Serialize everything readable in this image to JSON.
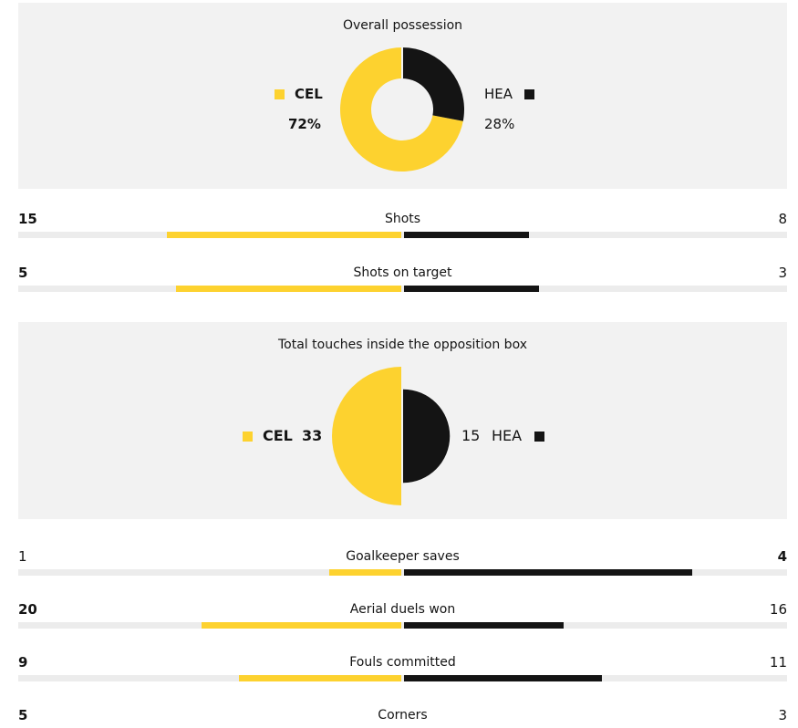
{
  "colors": {
    "home": "#fdd22f",
    "away": "#141414",
    "panel": "#f2f2f2",
    "track": "#ececec"
  },
  "teams": {
    "home": "CEL",
    "away": "HEA"
  },
  "possession": {
    "title": "Overall possession",
    "home_pct_label": "72%",
    "away_pct_label": "28%"
  },
  "touches": {
    "title": "Total touches inside the opposition box",
    "home_value_label": "33",
    "away_value_label": "15"
  },
  "stats": [
    {
      "label": "Shots",
      "home": "15",
      "away": "8"
    },
    {
      "label": "Shots on target",
      "home": "5",
      "away": "3"
    },
    {
      "label": "Goalkeeper saves",
      "home": "1",
      "away": "4"
    },
    {
      "label": "Aerial duels won",
      "home": "20",
      "away": "16"
    },
    {
      "label": "Fouls committed",
      "home": "9",
      "away": "11"
    },
    {
      "label": "Corners",
      "home": "5",
      "away": "3"
    }
  ],
  "chart_data": [
    {
      "type": "pie",
      "title": "Overall possession",
      "categories": [
        "CEL",
        "HEA"
      ],
      "values": [
        72,
        28
      ],
      "unit": "%",
      "donut": true
    },
    {
      "type": "pie",
      "title": "Total touches inside the opposition box",
      "categories": [
        "CEL",
        "HEA"
      ],
      "values": [
        33,
        15
      ]
    },
    {
      "type": "bar",
      "categories": [
        "Shots",
        "Shots on target",
        "Goalkeeper saves",
        "Aerial duels won",
        "Fouls committed",
        "Corners"
      ],
      "series": [
        {
          "name": "CEL",
          "values": [
            15,
            5,
            1,
            20,
            9,
            5
          ]
        },
        {
          "name": "HEA",
          "values": [
            8,
            3,
            4,
            16,
            11,
            3
          ]
        }
      ]
    }
  ]
}
